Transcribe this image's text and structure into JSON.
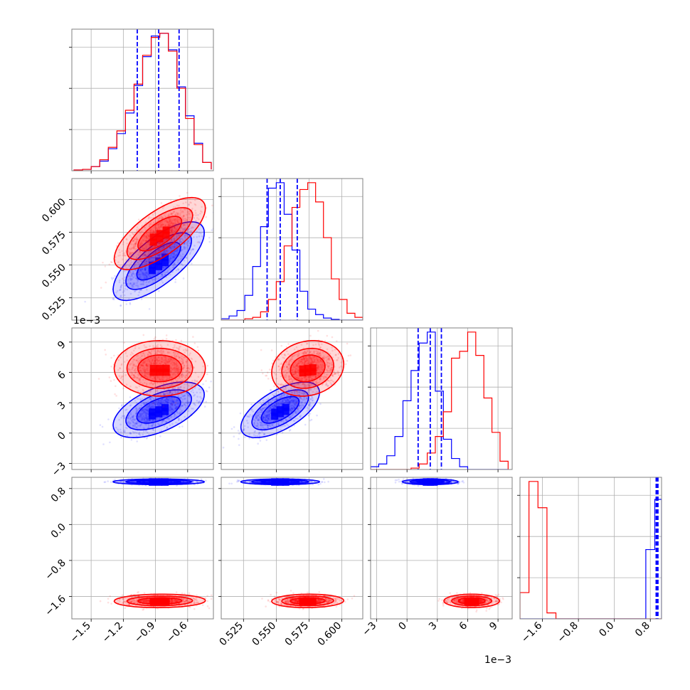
{
  "chart_data": {
    "type": "corner",
    "colors": {
      "blue": "#0000ff",
      "red": "#ff0000"
    },
    "parameters": [
      {
        "range": [
          -1.68,
          -0.36
        ],
        "ticks": [
          -1.5,
          -1.2,
          -0.9,
          -0.6
        ],
        "tick_labels": [
          "−1.5",
          "−1.2",
          "−0.9",
          "−0.6"
        ],
        "offset": ""
      },
      {
        "range": [
          0.508,
          0.616
        ],
        "ticks": [
          0.525,
          0.55,
          0.575,
          0.6
        ],
        "tick_labels": [
          "0.525",
          "0.550",
          "0.575",
          "0.600"
        ],
        "offset": ""
      },
      {
        "range": [
          -3.6,
          10.4
        ],
        "ticks": [
          -3,
          0,
          3,
          6,
          9
        ],
        "tick_labels": [
          "−3",
          "0",
          "3",
          "6",
          "9"
        ],
        "offset": "1e−3"
      },
      {
        "range": [
          -2.1,
          1.05
        ],
        "ticks": [
          -1.6,
          -0.8,
          0.0,
          0.8
        ],
        "tick_labels": [
          "−1.6",
          "−0.8",
          "0.0",
          "0.8"
        ],
        "offset": ""
      }
    ],
    "series": [
      {
        "color": "blue",
        "means": [
          -0.87,
          0.553,
          2.3,
          0.95
        ],
        "sds": [
          0.17,
          0.012,
          1.1,
          0.025
        ],
        "corr": [
          [
            1,
            0.72,
            0.55,
            0.0
          ],
          [
            0.72,
            1,
            0.62,
            0.0
          ],
          [
            0.55,
            0.62,
            1,
            0.0
          ],
          [
            0.0,
            0.0,
            0.0,
            1
          ]
        ],
        "quantiles": [
          [
            -1.07,
            -0.87,
            -0.68
          ],
          [
            0.543,
            0.553,
            0.566
          ],
          [
            1.1,
            2.3,
            3.4
          ],
          [
            0.93,
            0.95,
            0.97
          ]
        ]
      },
      {
        "color": "red",
        "means": [
          -0.86,
          0.574,
          6.4,
          -1.7
        ],
        "sds": [
          0.17,
          0.011,
          1.1,
          0.06
        ],
        "corr": [
          [
            1,
            0.7,
            0.0,
            0.05
          ],
          [
            0.7,
            1,
            0.15,
            0.05
          ],
          [
            0.0,
            0.15,
            1,
            0.0
          ],
          [
            0.05,
            0.05,
            0.0,
            1
          ]
        ]
      }
    ],
    "marginal_histograms": [
      {
        "bins": [
          -1.66,
          -1.58,
          -1.5,
          -1.42,
          -1.34,
          -1.26,
          -1.18,
          -1.1,
          -1.02,
          -0.94,
          -0.86,
          -0.78,
          -0.7,
          -0.62,
          -0.54,
          -0.46,
          -0.38
        ],
        "blue": [
          0.005,
          0.01,
          0.03,
          0.07,
          0.16,
          0.27,
          0.42,
          0.62,
          0.83,
          0.98,
          1.0,
          0.88,
          0.61,
          0.4,
          0.2,
          0.06,
          0.01
        ],
        "red": [
          0.005,
          0.01,
          0.03,
          0.08,
          0.17,
          0.29,
          0.44,
          0.63,
          0.84,
          0.97,
          1.0,
          0.87,
          0.6,
          0.38,
          0.19,
          0.06,
          0.01
        ]
      },
      {
        "bins": [
          0.508,
          0.514,
          0.52,
          0.526,
          0.532,
          0.538,
          0.544,
          0.55,
          0.556,
          0.562,
          0.568,
          0.574,
          0.58,
          0.586,
          0.592,
          0.598,
          0.604,
          0.61,
          0.616
        ],
        "blue": [
          0.01,
          0.03,
          0.07,
          0.18,
          0.39,
          0.68,
          0.96,
          1.0,
          0.77,
          0.51,
          0.21,
          0.08,
          0.04,
          0.015,
          0.005,
          0.0,
          0.0,
          0.0
        ],
        "red": [
          0.0,
          0.0,
          0.0,
          0.01,
          0.02,
          0.06,
          0.15,
          0.28,
          0.54,
          0.82,
          0.95,
          1.0,
          0.86,
          0.6,
          0.3,
          0.15,
          0.05,
          0.02
        ]
      },
      {
        "bins": [
          -3.6,
          -2.8,
          -2.0,
          -1.2,
          -0.4,
          0.4,
          1.2,
          2.0,
          2.8,
          3.6,
          4.4,
          5.2,
          6.0,
          6.8,
          7.6,
          8.4,
          9.2,
          10.0
        ],
        "blue": [
          0.02,
          0.04,
          0.1,
          0.24,
          0.5,
          0.72,
          0.92,
          1.0,
          0.57,
          0.22,
          0.08,
          0.02,
          0.0,
          0.0,
          0.0,
          0.0,
          0.0
        ],
        "red": [
          0.0,
          0.0,
          0.0,
          0.0,
          0.0,
          0.01,
          0.04,
          0.12,
          0.24,
          0.42,
          0.81,
          0.86,
          1.0,
          0.83,
          0.52,
          0.27,
          0.06
        ]
      },
      {
        "bins": [
          -2.1,
          -1.9,
          -1.7,
          -1.5,
          -1.3,
          -1.1,
          -0.9,
          -0.7,
          -0.5,
          -0.3,
          -0.1,
          0.1,
          0.3,
          0.5,
          0.7,
          0.9,
          1.05
        ],
        "blue": [
          0.0,
          0.0,
          0.0,
          0.0,
          0.0,
          0.0,
          0.0,
          0.0,
          0.0,
          0.0,
          0.0,
          0.0,
          0.0,
          0.0,
          0.58,
          1.0
        ],
        "red": [
          0.22,
          1.15,
          0.93,
          0.05,
          0.0,
          0.0,
          0.0,
          0.0,
          0.0,
          0.0,
          0.0,
          0.0,
          0.0,
          0.0,
          0.0,
          0.0
        ]
      }
    ],
    "legend": "none"
  }
}
